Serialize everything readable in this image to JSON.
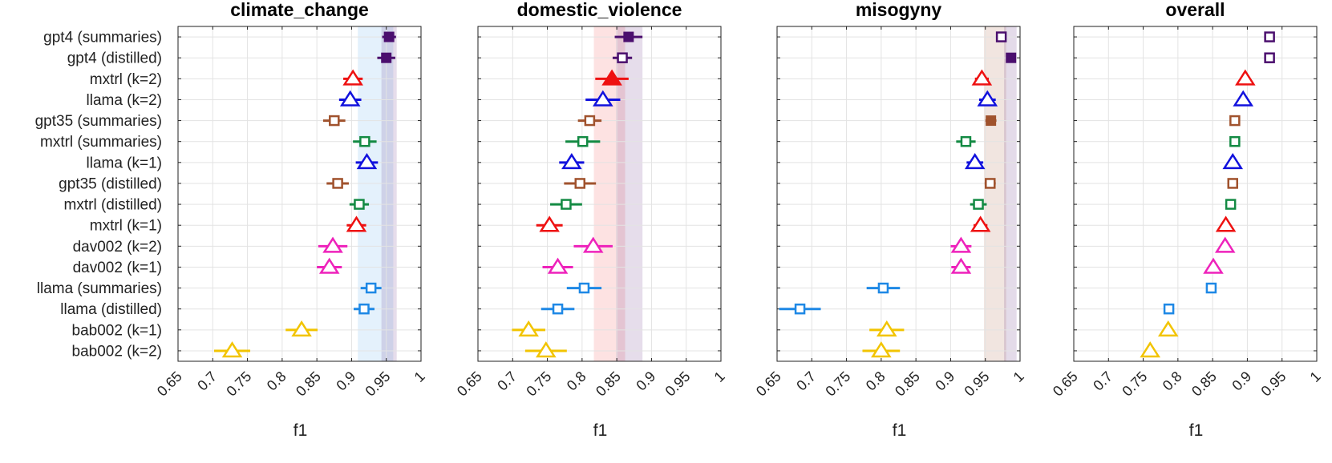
{
  "chart_data": {
    "type": "scatter",
    "xlabel": "f1",
    "xlim": [
      0.65,
      1
    ],
    "xticks": [
      "0.65",
      "0.7",
      "0.75",
      "0.8",
      "0.85",
      "0.9",
      "0.95",
      "1"
    ],
    "grid": true,
    "categories": [
      "gpt4 (summaries)",
      "gpt4 (distilled)",
      "mxtrl (k=2)",
      "llama (k=2)",
      "gpt35 (summaries)",
      "mxtrl (summaries)",
      "llama (k=1)",
      "gpt35 (distilled)",
      "mxtrl (distilled)",
      "mxtrl (k=1)",
      "dav002 (k=2)",
      "dav002 (k=1)",
      "llama (summaries)",
      "llama (distilled)",
      "bab002 (k=1)",
      "bab002 (k=2)"
    ],
    "styles": [
      {
        "color": "#4b0f6e",
        "marker": "square"
      },
      {
        "color": "#4b0f6e",
        "marker": "square"
      },
      {
        "color": "#ee1111",
        "marker": "triangle"
      },
      {
        "color": "#1111dd",
        "marker": "triangle"
      },
      {
        "color": "#a0522d",
        "marker": "square"
      },
      {
        "color": "#138a43",
        "marker": "square"
      },
      {
        "color": "#1111dd",
        "marker": "triangle"
      },
      {
        "color": "#a0522d",
        "marker": "square"
      },
      {
        "color": "#138a43",
        "marker": "square"
      },
      {
        "color": "#ee1111",
        "marker": "triangle"
      },
      {
        "color": "#ee22bb",
        "marker": "triangle"
      },
      {
        "color": "#ee22bb",
        "marker": "triangle"
      },
      {
        "color": "#1e88e5",
        "marker": "square"
      },
      {
        "color": "#1e88e5",
        "marker": "square"
      },
      {
        "color": "#f2c400",
        "marker": "triangle"
      },
      {
        "color": "#f2c400",
        "marker": "triangle"
      }
    ],
    "panels": [
      {
        "title": "climate_change",
        "values": [
          0.954,
          0.95,
          0.902,
          0.898,
          0.875,
          0.919,
          0.922,
          0.88,
          0.911,
          0.907,
          0.873,
          0.868,
          0.928,
          0.918,
          0.828,
          0.728
        ],
        "err": [
          0.01,
          0.013,
          0.014,
          0.016,
          0.016,
          0.017,
          0.016,
          0.016,
          0.014,
          0.014,
          0.021,
          0.018,
          0.015,
          0.015,
          0.023,
          0.026
        ],
        "filled": [
          0,
          1
        ],
        "bands": [
          {
            "lo": 0.909,
            "hi": 0.96,
            "color": "#1e88e5",
            "opacity": 0.12
          },
          {
            "lo": 0.943,
            "hi": 0.965,
            "color": "#4b0f6e",
            "opacity": 0.14
          }
        ]
      },
      {
        "title": "domestic_violence",
        "values": [
          0.867,
          0.858,
          0.843,
          0.83,
          0.811,
          0.801,
          0.785,
          0.797,
          0.777,
          0.753,
          0.816,
          0.765,
          0.803,
          0.765,
          0.723,
          0.748
        ],
        "err": [
          0.02,
          0.014,
          0.024,
          0.025,
          0.017,
          0.025,
          0.018,
          0.023,
          0.023,
          0.019,
          0.028,
          0.022,
          0.025,
          0.024,
          0.024,
          0.03
        ],
        "filled": [
          0,
          2
        ],
        "bands": [
          {
            "lo": 0.817,
            "hi": 0.862,
            "color": "#ee1111",
            "opacity": 0.12
          },
          {
            "lo": 0.849,
            "hi": 0.887,
            "color": "#4b0f6e",
            "opacity": 0.14
          }
        ]
      },
      {
        "title": "misogyny",
        "values": [
          0.973,
          0.987,
          0.945,
          0.953,
          0.958,
          0.922,
          0.935,
          0.957,
          0.94,
          0.943,
          0.915,
          0.915,
          0.803,
          0.683,
          0.808,
          0.8
        ],
        "err": [
          0.005,
          0.005,
          0.01,
          0.012,
          0.008,
          0.014,
          0.012,
          0.008,
          0.012,
          0.01,
          0.015,
          0.014,
          0.024,
          0.03,
          0.025,
          0.027
        ],
        "filled": [
          1,
          4
        ],
        "bands": [
          {
            "lo": 0.948,
            "hi": 0.98,
            "color": "#a0522d",
            "opacity": 0.15
          },
          {
            "lo": 0.977,
            "hi": 0.995,
            "color": "#4b0f6e",
            "opacity": 0.15
          }
        ]
      },
      {
        "title": "overall",
        "values": [
          0.932,
          0.932,
          0.897,
          0.894,
          0.882,
          0.882,
          0.879,
          0.879,
          0.876,
          0.869,
          0.868,
          0.851,
          0.848,
          0.787,
          0.786,
          0.76
        ],
        "err": [
          0,
          0,
          0,
          0,
          0,
          0,
          0,
          0,
          0,
          0,
          0,
          0,
          0,
          0,
          0,
          0
        ],
        "filled": [],
        "bands": []
      }
    ]
  }
}
